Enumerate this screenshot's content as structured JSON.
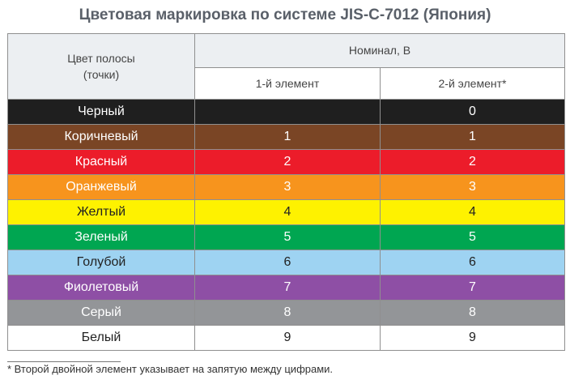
{
  "title": "Цветовая маркировка по системе JIS-C-7012 (Япония)",
  "header": {
    "color_line1": "Цвет полосы",
    "color_line2": "(точки)",
    "nominal": "Номинал, В",
    "element1": "1-й элемент",
    "element2": "2-й элемент*"
  },
  "rows": [
    {
      "name": "Черный",
      "v1": "",
      "v2": "0",
      "color": "#1f1f1f",
      "text_color": "#ffffff"
    },
    {
      "name": "Коричневый",
      "v1": "1",
      "v2": "1",
      "color": "#7a4525",
      "text_color": "#ffffff"
    },
    {
      "name": "Красный",
      "v1": "2",
      "v2": "2",
      "color": "#ec1c2a",
      "text_color": "#ffffff"
    },
    {
      "name": "Оранжевый",
      "v1": "3",
      "v2": "3",
      "color": "#f7941d",
      "text_color": "#ffffff"
    },
    {
      "name": "Желтый",
      "v1": "4",
      "v2": "4",
      "color": "#fef200",
      "text_color": "#222222"
    },
    {
      "name": "Зеленый",
      "v1": "5",
      "v2": "5",
      "color": "#00a651",
      "text_color": "#ffffff"
    },
    {
      "name": "Голубой",
      "v1": "6",
      "v2": "6",
      "color": "#9ed3f2",
      "text_color": "#222222"
    },
    {
      "name": "Фиолетовый",
      "v1": "7",
      "v2": "7",
      "color": "#8e4fa5",
      "text_color": "#ffffff"
    },
    {
      "name": "Серый",
      "v1": "8",
      "v2": "8",
      "color": "#939598",
      "text_color": "#ffffff"
    },
    {
      "name": "Белый",
      "v1": "9",
      "v2": "9",
      "color": "#ffffff",
      "text_color": "#222222"
    }
  ],
  "footnote": "* Второй двойной элемент указывает на запятую между цифрами."
}
